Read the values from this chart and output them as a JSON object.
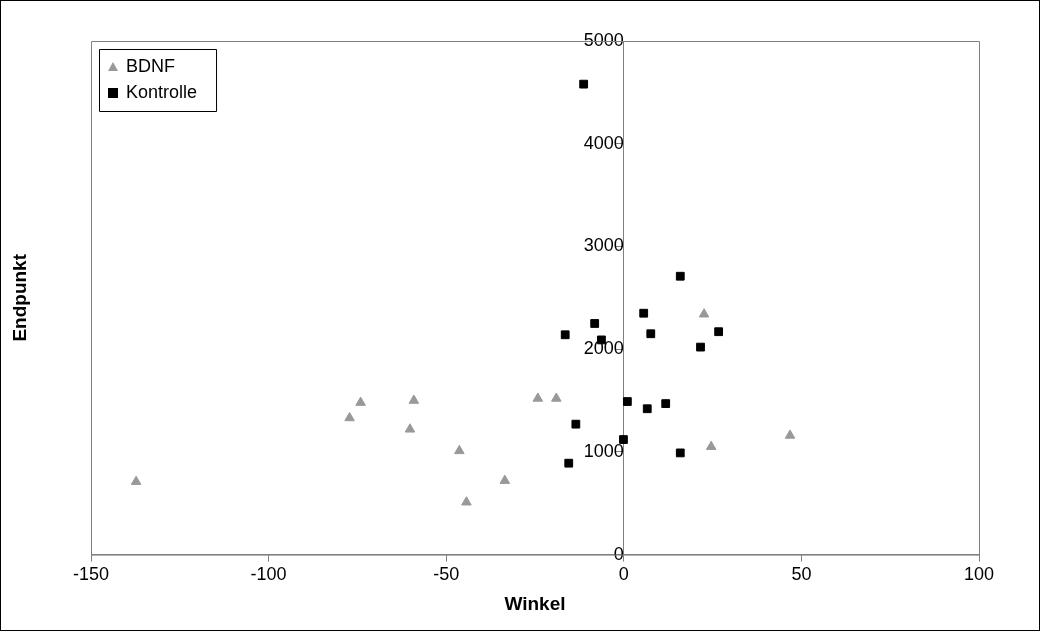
{
  "chart_data": {
    "type": "scatter",
    "xlabel": "Winkel",
    "ylabel": "Endpunkt",
    "xlim": [
      -150,
      100
    ],
    "xticks": [
      -150,
      -100,
      -50,
      0,
      50,
      100
    ],
    "ylim": [
      0,
      5000
    ],
    "yticks": [
      0,
      1000,
      2000,
      3000,
      4000,
      5000
    ],
    "grid": false,
    "legend": "top left",
    "series": [
      {
        "name": "BDNF",
        "color": "#999999",
        "marker": "triangle",
        "x": [
          -137.3,
          -74.1,
          -77.2,
          -59.1,
          -60.2,
          -46.3,
          -33.5,
          -44.3,
          -24.2,
          -19.0,
          22.6,
          24.6,
          46.8
        ],
        "values": [
          710,
          1480,
          1330,
          1500,
          1220,
          1010,
          720,
          510,
          1520,
          1520,
          2340,
          1050,
          1160
        ]
      },
      {
        "name": "Kontrolle",
        "color": "#000000",
        "marker": "square",
        "x": [
          -11.3,
          15.9,
          5.6,
          -8.2,
          -16.5,
          -6.3,
          7.6,
          26.7,
          21.6,
          1.0,
          6.6,
          11.8,
          -13.5,
          -0.1,
          15.9,
          -15.5
        ],
        "values": [
          4580,
          2710,
          2350,
          2250,
          2140,
          2090,
          2150,
          2170,
          2020,
          1490,
          1420,
          1470,
          1270,
          1120,
          990,
          890
        ]
      }
    ]
  }
}
